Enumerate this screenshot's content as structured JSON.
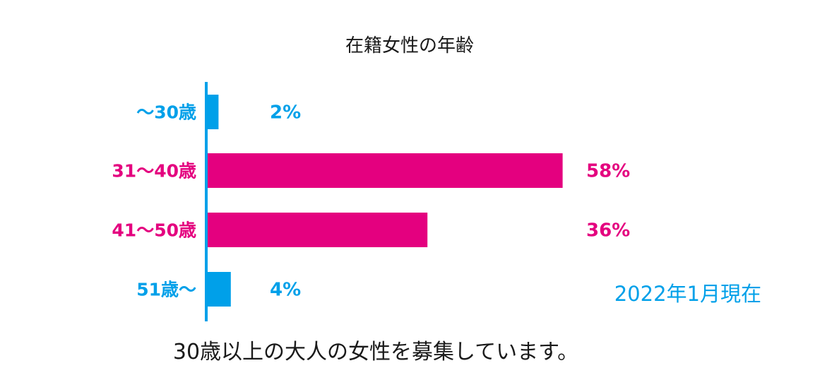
{
  "chart_data": {
    "type": "bar",
    "orientation": "horizontal",
    "title": "在籍女性の年齢",
    "categories": [
      "～30歳",
      "31～40歳",
      "41～50歳",
      "51歳～"
    ],
    "values": [
      2,
      58,
      36,
      4
    ],
    "value_labels": [
      "2%",
      "58%",
      "36%",
      "4%"
    ],
    "unit": "%",
    "xlim": [
      0,
      60
    ],
    "grid": false,
    "legend": "none",
    "colors": [
      "#00a0e9",
      "#e4007f",
      "#e4007f",
      "#00a0e9"
    ],
    "annotation": "2022年1月現在"
  },
  "caption": "30歳以上の大人の女性を募集しています。",
  "colors": {
    "axis": "#00a0e9",
    "blue": "#00a0e9",
    "magenta": "#e4007f",
    "text": "#1a1a1a"
  }
}
